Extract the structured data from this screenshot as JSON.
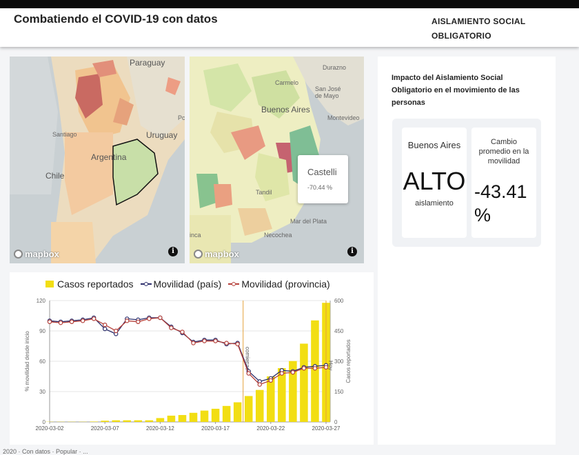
{
  "header": {
    "title": "Combatiendo el COVID-19 con datos",
    "nav_link": "AISLAMIENTO SOCIAL OBLIGATORIO"
  },
  "map_left": {
    "labels": [
      "Paraguay",
      "Uruguay",
      "Argentina",
      "Chile",
      "Santiago",
      "Pc"
    ],
    "attribution": "mapbox",
    "info_icon": "info-icon"
  },
  "map_right": {
    "labels": [
      "Durazno",
      "Carmelo",
      "San José de Mayo",
      "Buenos Aires",
      "Montevideo",
      "Tandil",
      "Mar del Plata",
      "Necochea",
      "inca"
    ],
    "attribution": "mapbox",
    "tooltip": {
      "name": "Castelli",
      "value": "-70.44 %"
    }
  },
  "impact": {
    "title": "Impacto del Aislamiento Social Obligatorio en el movimiento de las personas",
    "region": "Buenos Aires",
    "level": "ALTO",
    "level_sub": "aislamiento",
    "change_label": "Cambio promedio en la movilidad",
    "change_value": "-43.41 %"
  },
  "footer": {
    "text": "2020 · Con datos · Popular · ..."
  },
  "colors": {
    "bars": "#f2de13",
    "pais": "#2b2d6b",
    "provincia": "#b5403a",
    "vline": "#e5a23a"
  },
  "chart_data": {
    "type": "bar",
    "legend": [
      "Casos reportados",
      "Movilidad (país)",
      "Movilidad (provincia)"
    ],
    "ylabel": "% movilidad desde inicio",
    "y2label": "Casos reportados",
    "ylim": [
      0,
      120
    ],
    "y2lim": [
      0,
      600
    ],
    "yticks": [
      0,
      30,
      60,
      90,
      120
    ],
    "y2ticks": [
      0,
      150,
      300,
      450,
      600
    ],
    "x_tick_labels": [
      "2020-03-02",
      "2020-03-07",
      "2020-03-12",
      "2020-03-17",
      "2020-03-22",
      "2020-03-27"
    ],
    "x": [
      "2020-03-02",
      "2020-03-03",
      "2020-03-04",
      "2020-03-05",
      "2020-03-06",
      "2020-03-07",
      "2020-03-08",
      "2020-03-09",
      "2020-03-10",
      "2020-03-11",
      "2020-03-12",
      "2020-03-13",
      "2020-03-14",
      "2020-03-15",
      "2020-03-16",
      "2020-03-17",
      "2020-03-18",
      "2020-03-19",
      "2020-03-20",
      "2020-03-21",
      "2020-03-22",
      "2020-03-23",
      "2020-03-24",
      "2020-03-25",
      "2020-03-26",
      "2020-03-27"
    ],
    "series": [
      {
        "name": "Casos reportados",
        "axis": "right",
        "values": [
          1,
          1,
          1,
          1,
          2,
          6,
          8,
          8,
          8,
          8,
          19,
          31,
          34,
          45,
          56,
          65,
          79,
          97,
          128,
          158,
          225,
          266,
          301,
          387,
          502,
          589
        ]
      },
      {
        "name": "Movilidad (país)",
        "axis": "left",
        "values": [
          100,
          99,
          100,
          101,
          103,
          92,
          87,
          102,
          101,
          103,
          103,
          94,
          88,
          79,
          81,
          81,
          77,
          78,
          50,
          40,
          43,
          51,
          50,
          54,
          55,
          56
        ]
      },
      {
        "name": "Movilidad (provincia)",
        "axis": "left",
        "values": [
          99,
          98,
          99,
          100,
          102,
          96,
          90,
          100,
          99,
          102,
          103,
          93,
          89,
          78,
          80,
          80,
          78,
          77,
          48,
          37,
          41,
          48,
          49,
          53,
          53,
          54
        ]
      }
    ],
    "annotations": [
      "comienzo",
      "Hoy"
    ]
  }
}
